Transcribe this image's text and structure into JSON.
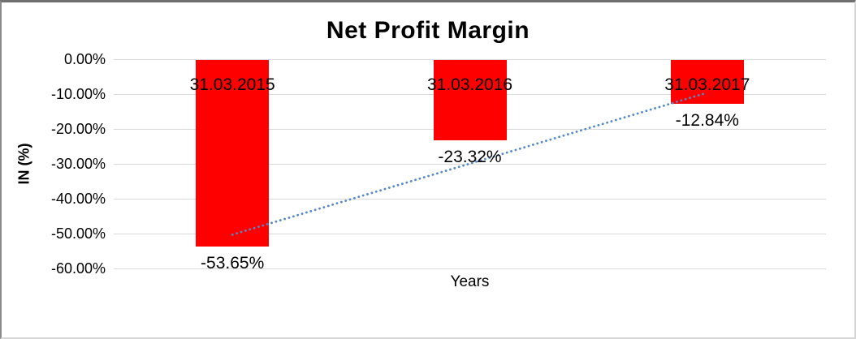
{
  "chart_data": {
    "type": "bar",
    "title": "Net Profit Margin",
    "xlabel": "Years",
    "ylabel": "IN (%)",
    "categories": [
      "31.03.2015",
      "31.03.2016",
      "31.03.2017"
    ],
    "values": [
      -53.65,
      -23.32,
      -12.84
    ],
    "value_labels": [
      "-53.65%",
      "-23.32%",
      "-12.84%"
    ],
    "ylim": [
      -60,
      0
    ],
    "yticks": [
      0,
      -10,
      -20,
      -30,
      -40,
      -50,
      -60
    ],
    "ytick_labels": [
      "0.00%",
      "-10.00%",
      "-20.00%",
      "-30.00%",
      "-40.00%",
      "-50.00%",
      "-60.00%"
    ],
    "grid": true,
    "legend": "none",
    "bar_color": "#FF0000",
    "gridline_color": "#D9D9D9",
    "text_color": "#000000",
    "trendline": {
      "type": "linear",
      "style": "dotted",
      "color": "#5488C7",
      "start_value": -50.3,
      "end_value": -9.6
    }
  }
}
